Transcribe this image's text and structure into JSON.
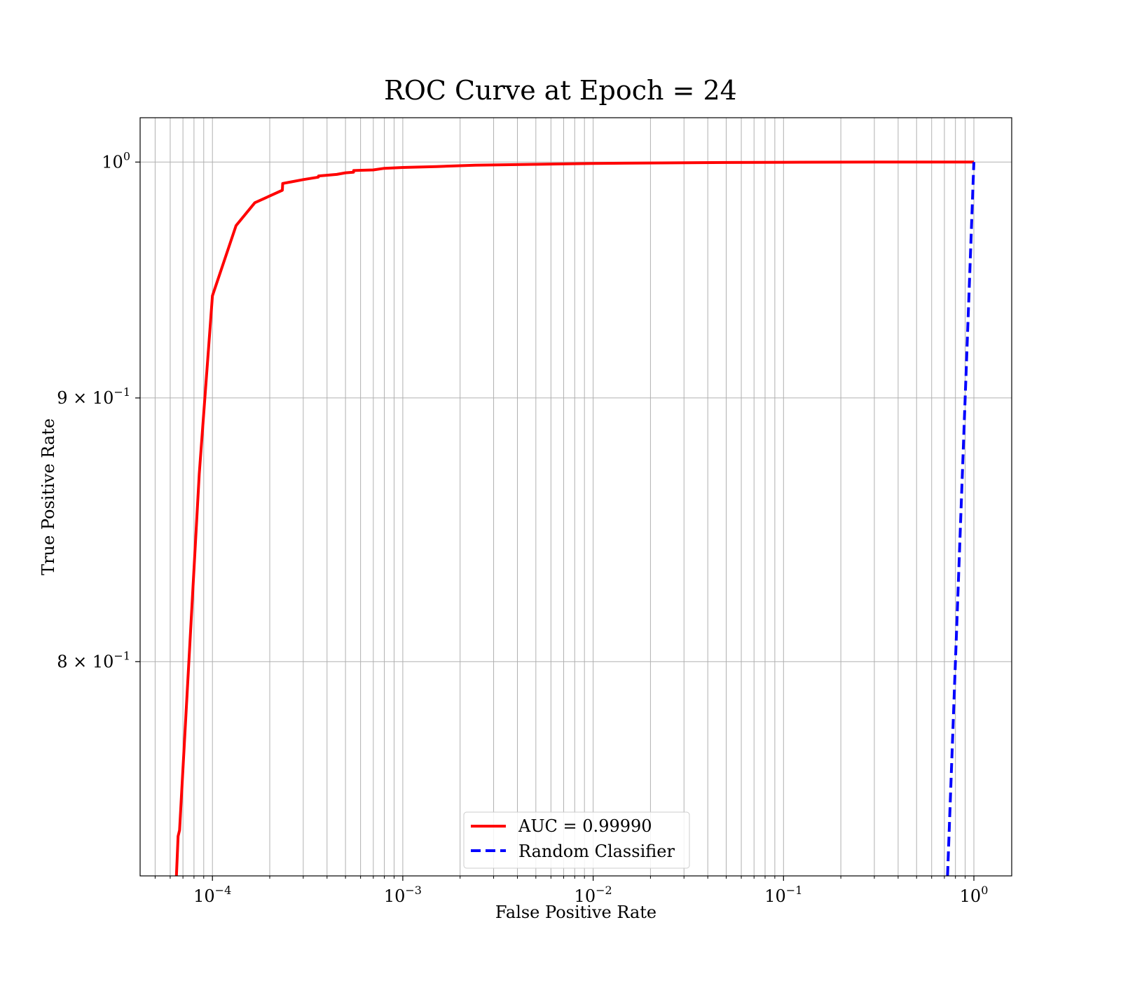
{
  "chart_data": {
    "type": "line",
    "title": "ROC Curve at Epoch = 24",
    "xlabel": "False Positive Rate",
    "ylabel": "True Positive Rate",
    "xscale": "log",
    "yscale": "log",
    "xlim": [
      4.17e-05,
      1.58
    ],
    "ylim": [
      0.727,
      1.02
    ],
    "grid": true,
    "grid_which": "both",
    "legend_position": "lower-center",
    "x_ticks": [
      {
        "value": 0.0001,
        "base": "10",
        "exp": "−4"
      },
      {
        "value": 0.001,
        "base": "10",
        "exp": "−3"
      },
      {
        "value": 0.01,
        "base": "10",
        "exp": "−2"
      },
      {
        "value": 0.1,
        "base": "10",
        "exp": "−1"
      },
      {
        "value": 1,
        "base": "10",
        "exp": "0"
      }
    ],
    "y_ticks": [
      {
        "value": 1.0,
        "prefix": "",
        "base": "10",
        "exp": "0"
      },
      {
        "value": 0.9,
        "prefix": "9 × ",
        "base": "10",
        "exp": "−1"
      },
      {
        "value": 0.8,
        "prefix": "8 × ",
        "base": "10",
        "exp": "−1"
      }
    ],
    "series": [
      {
        "name": "AUC = 0.99990",
        "color": "#ff0000",
        "style": "solid",
        "x": [
          6.47e-05,
          6.6e-05,
          6.72e-05,
          8.53e-05,
          0.0001,
          0.000133,
          0.000167,
          0.000233,
          0.000234,
          0.00026,
          0.0003,
          0.00036,
          0.000361,
          0.00045,
          0.0005,
          0.000551,
          0.000552,
          0.0007,
          0.0008,
          0.001,
          0.0015,
          0.0024,
          0.005,
          0.01,
          0.05,
          0.1,
          0.3,
          0.5,
          1.0
        ],
        "y": [
          0.727,
          0.74,
          0.742,
          0.87,
          0.942,
          0.972,
          0.982,
          0.9875,
          0.9905,
          0.9912,
          0.9922,
          0.9933,
          0.9938,
          0.9945,
          0.9952,
          0.9955,
          0.9962,
          0.9965,
          0.9972,
          0.9976,
          0.998,
          0.9986,
          0.999,
          0.9994,
          0.9998,
          0.9999,
          1.0,
          1.0,
          1.0
        ]
      },
      {
        "name": "Random Classifier",
        "color": "#0000ff",
        "style": "dashed",
        "x": [
          0.727,
          1.0
        ],
        "y": [
          0.727,
          1.0
        ]
      }
    ]
  }
}
